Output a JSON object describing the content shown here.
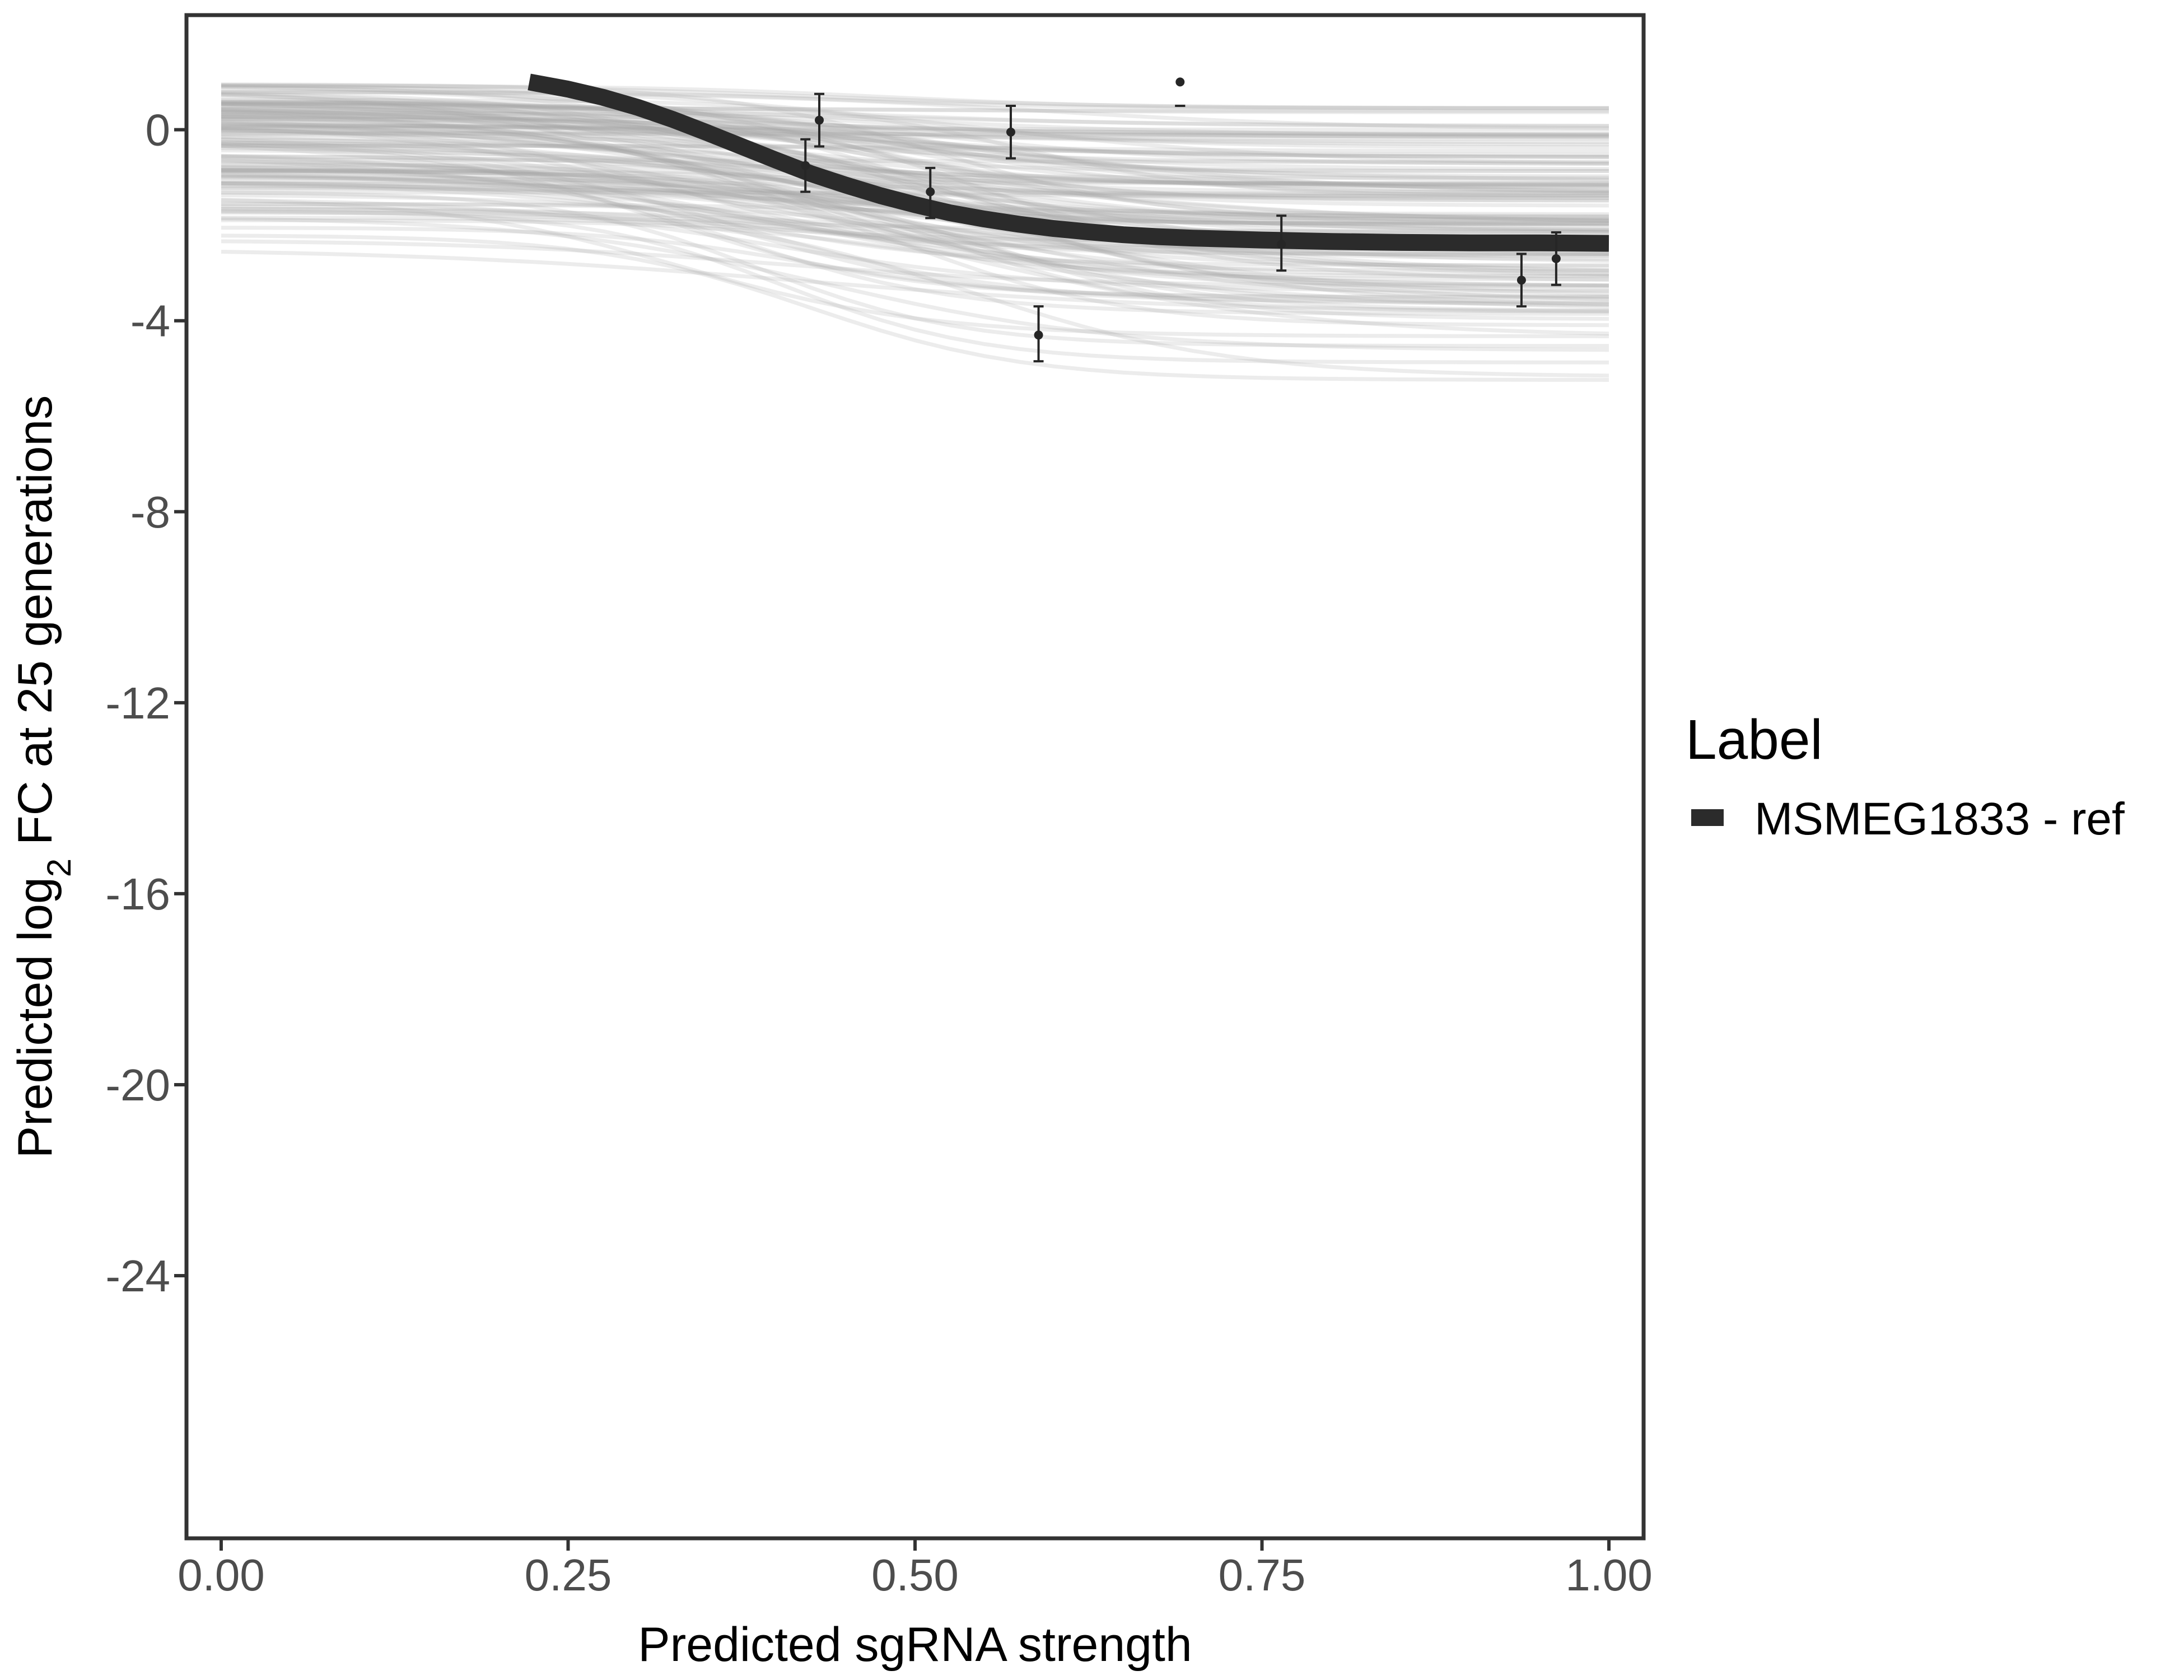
{
  "chart_data": {
    "type": "line",
    "xlabel": "Predicted sgRNA strength",
    "ylabel": {
      "prefix": "Predicted  log",
      "subscript": "2",
      "suffix": " FC at 25 generations"
    },
    "xlim": [
      -0.025,
      1.025
    ],
    "ylim": [
      -29.5,
      2.4
    ],
    "x_ticks": [
      0.0,
      0.25,
      0.5,
      0.75,
      1.0
    ],
    "x_tick_labels": [
      "0.00",
      "0.25",
      "0.50",
      "0.75",
      "1.00"
    ],
    "y_ticks": [
      0,
      -4,
      -8,
      -12,
      -16,
      -20,
      -24
    ],
    "y_tick_labels": [
      "0",
      "-4",
      "-8",
      "-12",
      "-16",
      "-20",
      "-24"
    ],
    "grid": false,
    "legend": {
      "title": "Label",
      "position": "right",
      "entries": [
        {
          "label": "MSMEG1833 - ref",
          "color": "#2b2b2b"
        }
      ]
    },
    "fitted_curve": {
      "name": "MSMEG1833 - ref",
      "color": "#2b2b2b",
      "x": [
        0.222,
        0.25,
        0.275,
        0.3,
        0.325,
        0.35,
        0.375,
        0.4,
        0.425,
        0.45,
        0.475,
        0.5,
        0.525,
        0.55,
        0.575,
        0.6,
        0.625,
        0.65,
        0.675,
        0.7,
        0.75,
        0.8,
        0.85,
        0.9,
        0.95,
        1.0
      ],
      "y": [
        1.0,
        0.85,
        0.68,
        0.47,
        0.22,
        -0.06,
        -0.35,
        -0.64,
        -0.92,
        -1.16,
        -1.38,
        -1.57,
        -1.74,
        -1.87,
        -1.98,
        -2.07,
        -2.14,
        -2.2,
        -2.24,
        -2.27,
        -2.31,
        -2.34,
        -2.36,
        -2.37,
        -2.37,
        -2.38
      ]
    },
    "points": [
      {
        "x": 0.421,
        "y": -0.75,
        "ymin": -1.3,
        "ymax": -0.2
      },
      {
        "x": 0.431,
        "y": 0.2,
        "ymin": -0.35,
        "ymax": 0.75
      },
      {
        "x": 0.511,
        "y": -1.3,
        "ymin": -1.85,
        "ymax": -0.8
      },
      {
        "x": 0.569,
        "y": -0.05,
        "ymin": -0.6,
        "ymax": 0.5
      },
      {
        "x": 0.589,
        "y": -4.3,
        "ymin": -4.85,
        "ymax": -3.7
      },
      {
        "x": 0.691,
        "y": 1.0,
        "ymin": 0.5,
        "ymax": 0.5
      },
      {
        "x": 0.764,
        "y": -2.4,
        "ymin": -2.95,
        "ymax": -1.8
      },
      {
        "x": 0.937,
        "y": -3.15,
        "ymin": -3.7,
        "ymax": -2.6
      },
      {
        "x": 0.962,
        "y": -2.7,
        "ymin": -3.25,
        "ymax": -2.15
      }
    ],
    "posterior_draws": {
      "color": "#a9a9a9",
      "count": 140,
      "x_range": [
        0.0,
        1.0
      ],
      "start_y_range": [
        -2.7,
        1.0
      ],
      "end_y_range": [
        -5.5,
        0.45
      ]
    }
  }
}
